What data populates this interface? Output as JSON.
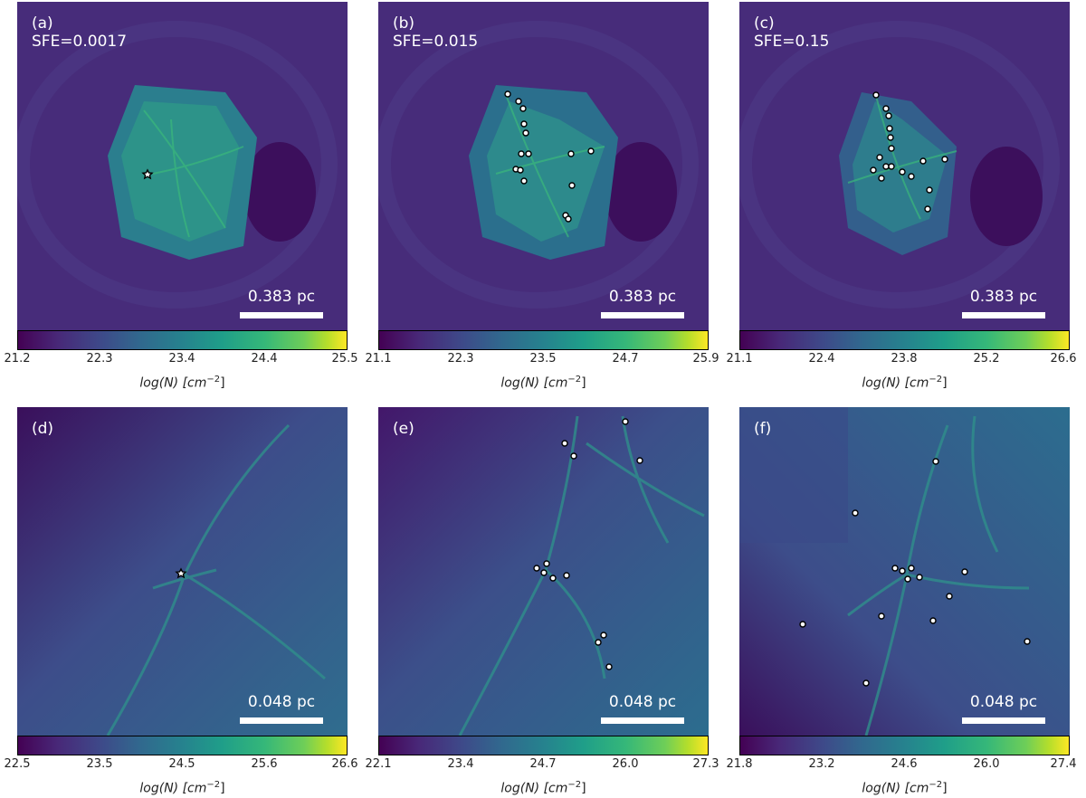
{
  "panels": [
    {
      "label": "(a) SFE=0.0017",
      "scale": "0.383 pc",
      "ticks": [
        "21.2",
        "22.3",
        "23.4",
        "24.4",
        "25.5"
      ],
      "cbar_label": "log(N) [cm",
      "cbar_unit_exp": "−2",
      "cbar_close": "]"
    },
    {
      "label": "(b) SFE=0.015",
      "scale": "0.383 pc",
      "ticks": [
        "21.1",
        "22.3",
        "23.5",
        "24.7",
        "25.9"
      ],
      "cbar_label": "log(N) [cm",
      "cbar_unit_exp": "−2",
      "cbar_close": "]"
    },
    {
      "label": "(c) SFE=0.15",
      "scale": "0.383 pc",
      "ticks": [
        "21.1",
        "22.4",
        "23.8",
        "25.2",
        "26.6"
      ],
      "cbar_label": "log(N) [cm",
      "cbar_unit_exp": "−2",
      "cbar_close": "]"
    },
    {
      "label": "(d)",
      "scale": "0.048 pc",
      "ticks": [
        "22.5",
        "23.5",
        "24.5",
        "25.6",
        "26.6"
      ],
      "cbar_label": "log(N) [cm",
      "cbar_unit_exp": "−2",
      "cbar_close": "]"
    },
    {
      "label": "(e)",
      "scale": "0.048 pc",
      "ticks": [
        "22.1",
        "23.4",
        "24.7",
        "26.0",
        "27.3"
      ],
      "cbar_label": "log(N) [cm",
      "cbar_unit_exp": "−2",
      "cbar_close": "]"
    },
    {
      "label": "(f)",
      "scale": "0.048 pc",
      "ticks": [
        "21.8",
        "23.2",
        "24.6",
        "26.0",
        "27.4"
      ],
      "cbar_label": "log(N) [cm",
      "cbar_unit_exp": "−2",
      "cbar_close": "]"
    }
  ],
  "colors": {
    "background": "#ffffff",
    "text": "#222222",
    "star_fill": "#ffffff",
    "star_edge": "#000000"
  }
}
